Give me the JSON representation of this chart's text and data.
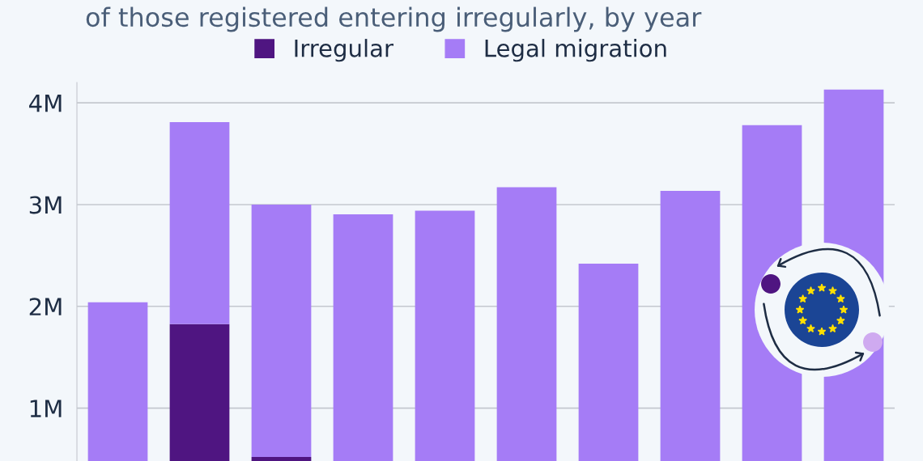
{
  "chart_data": {
    "type": "bar",
    "subtitle": "of those registered entering irregularly, by year",
    "categories": [
      null,
      null,
      null,
      null,
      null,
      null,
      null,
      null,
      null,
      null
    ],
    "stacked": true,
    "series": [
      {
        "name": "Irregular",
        "color": "#4f1581",
        "values": [
          null,
          1.825,
          0.52,
          null,
          null,
          null,
          null,
          null,
          null,
          null
        ]
      },
      {
        "name": "Legal migration",
        "color": "#a57cf6",
        "values": [
          2.04,
          1.985,
          2.48,
          2.905,
          2.94,
          3.17,
          2.42,
          3.135,
          3.78,
          4.13
        ]
      }
    ],
    "ylim": [
      0.48,
      4.2
    ],
    "yticks": [
      {
        "value": 1,
        "label": "1M"
      },
      {
        "value": 2,
        "label": "2M"
      },
      {
        "value": 3,
        "label": "3M"
      },
      {
        "value": 4,
        "label": "4M"
      }
    ],
    "tick_labels": "y",
    "grid": "y",
    "legend": "top"
  }
}
